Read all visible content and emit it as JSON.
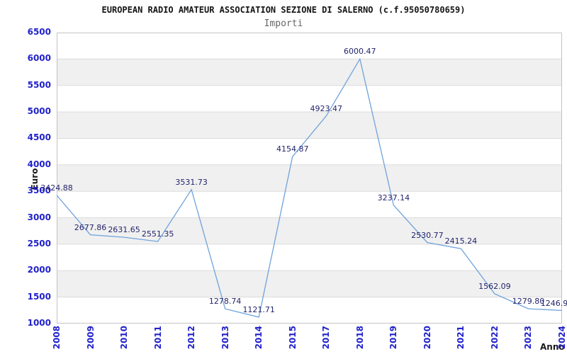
{
  "chart_data": {
    "type": "line",
    "title": "EUROPEAN RADIO AMATEUR ASSOCIATION SEZIONE DI SALERNO (c.f.95050780659)",
    "subtitle": "Importi",
    "xlabel": "Anno",
    "ylabel": "Euro",
    "x": [
      "2008",
      "2009",
      "2010",
      "2011",
      "2012",
      "2013",
      "2014",
      "2015",
      "2017",
      "2018",
      "2019",
      "2020",
      "2021",
      "2022",
      "2023",
      "2024"
    ],
    "values": [
      3424.88,
      2677.86,
      2631.65,
      2551.35,
      3531.73,
      1278.74,
      1121.71,
      4154.87,
      4923.47,
      6000.47,
      3237.14,
      2530.77,
      2415.24,
      1562.09,
      1279.8,
      1246.9
    ],
    "point_labels": [
      "3424.88",
      "2677.86",
      "2631.65",
      "2551.35",
      "3531.73",
      "1278.74",
      "1121.71",
      "4154.87",
      "4923.47",
      "6000.47",
      "3237.14",
      "2530.77",
      "2415.24",
      "1562.09",
      "1279.80",
      "1246.9"
    ],
    "y_ticks": [
      "6500",
      "6000",
      "5500",
      "5000",
      "4500",
      "4000",
      "3500",
      "3000",
      "2500",
      "2000",
      "1500",
      "1000"
    ],
    "ylim": [
      1000,
      6500
    ],
    "ytick_step": 500,
    "grid": "horizontal-bands-alternating",
    "legend": "none",
    "colors": {
      "line": "#6FA3DB",
      "tick_label": "#2222CC",
      "point_label": "#23236B",
      "band": "#F0F0F0",
      "band_alt": "#FFFFFF",
      "grid_line": "#DCDCDC",
      "border": "#C4C4C4",
      "title": "#141414",
      "subtitle": "#666666",
      "background": "#FFFFFF"
    }
  }
}
